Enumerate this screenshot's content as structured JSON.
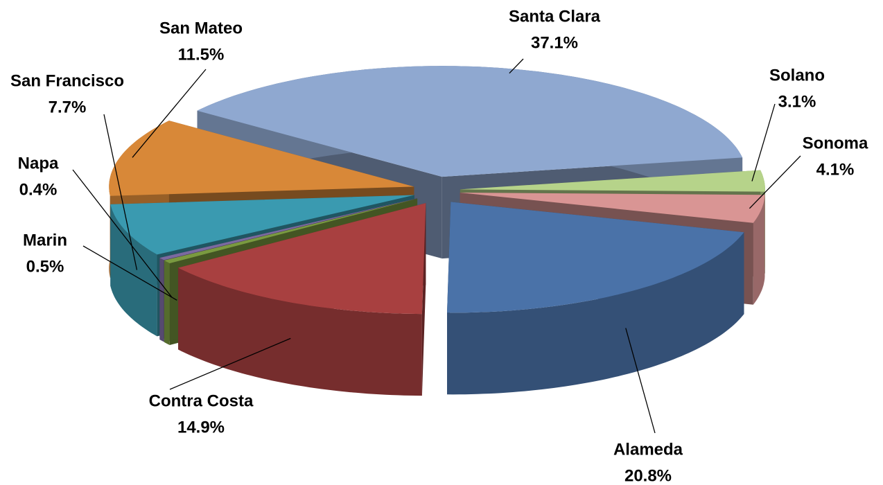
{
  "chart_data": {
    "type": "pie3d",
    "categories": [
      "Santa Clara",
      "Solano",
      "Sonoma",
      "Alameda",
      "Contra Costa",
      "Marin",
      "Napa",
      "San Francisco",
      "San Mateo"
    ],
    "values": [
      37.1,
      3.1,
      4.1,
      20.8,
      14.9,
      0.5,
      0.4,
      7.7,
      11.5
    ],
    "value_labels": [
      "37.1%",
      "3.1%",
      "4.1%",
      "20.8%",
      "14.9%",
      "0.5%",
      "0.4%",
      "7.7%",
      "11.5%"
    ],
    "colors": [
      "#8fa8d0",
      "#b6d38a",
      "#d99594",
      "#4a72a8",
      "#a84040",
      "#7a9a40",
      "#7b6aa0",
      "#3a9ab0",
      "#d88838"
    ]
  }
}
